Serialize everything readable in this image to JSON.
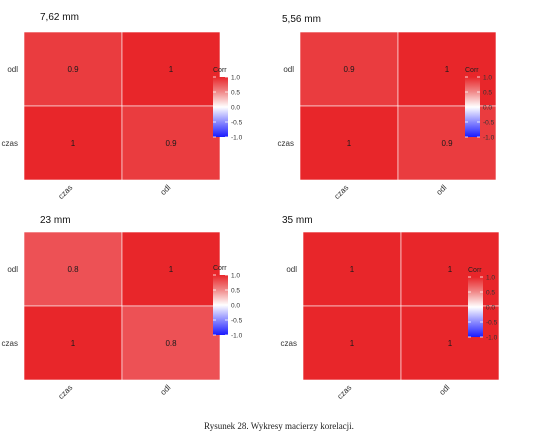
{
  "caption": "Rysunek 28. Wykresy macierzy korelacji.",
  "colors": {
    "low": "#1a1aff",
    "mid": "#ffffff",
    "high": "#e8262a",
    "cell_border": "#ffffff"
  },
  "chart_data": [
    {
      "type": "heatmap",
      "title": "7,62 mm",
      "rows": [
        "odl",
        "czas"
      ],
      "columns": [
        "czas",
        "odl"
      ],
      "values": [
        [
          0.9,
          1
        ],
        [
          1,
          0.9
        ]
      ],
      "labels": [
        [
          "0.9",
          "1"
        ],
        [
          "1",
          "0.9"
        ]
      ],
      "legend": {
        "title": "Corr",
        "ticks": [
          "1.0",
          "0.5",
          "0.0",
          "-0.5",
          "-1.0"
        ],
        "range": [
          -1,
          1
        ],
        "placement": "right"
      }
    },
    {
      "type": "heatmap",
      "title": "5,56 mm",
      "rows": [
        "odl",
        "czas"
      ],
      "columns": [
        "czas",
        "odl"
      ],
      "values": [
        [
          0.9,
          1
        ],
        [
          1,
          0.9
        ]
      ],
      "labels": [
        [
          "0.9",
          "1"
        ],
        [
          "1",
          "0.9"
        ]
      ],
      "legend": {
        "title": "Corr",
        "ticks": [
          "1.0",
          "0.5",
          "0.0",
          "-0.5",
          "-1.0"
        ],
        "range": [
          -1,
          1
        ],
        "placement": "right"
      }
    },
    {
      "type": "heatmap",
      "title": "23 mm",
      "rows": [
        "odl",
        "czas"
      ],
      "columns": [
        "czas",
        "odl"
      ],
      "values": [
        [
          0.8,
          1
        ],
        [
          1,
          0.8
        ]
      ],
      "labels": [
        [
          "0.8",
          "1"
        ],
        [
          "1",
          "0.8"
        ]
      ],
      "legend": {
        "title": "Corr",
        "ticks": [
          "1.0",
          "0.5",
          "0.0",
          "-0.5",
          "-1.0"
        ],
        "range": [
          -1,
          1
        ],
        "placement": "right"
      }
    },
    {
      "type": "heatmap",
      "title": "35 mm",
      "rows": [
        "odl",
        "czas"
      ],
      "columns": [
        "czas",
        "odl"
      ],
      "values": [
        [
          1,
          1
        ],
        [
          1,
          1
        ]
      ],
      "labels": [
        [
          "1",
          "1"
        ],
        [
          "1",
          "1"
        ]
      ],
      "legend": {
        "title": "Corr",
        "ticks": [
          "1.0",
          "0.5",
          "0.0",
          "-0.5",
          "-1.0"
        ],
        "range": [
          -1,
          1
        ],
        "placement": "right"
      }
    }
  ]
}
